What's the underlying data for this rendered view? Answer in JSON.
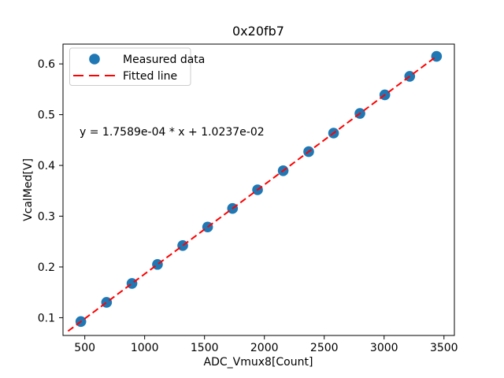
{
  "chart_data": {
    "type": "scatter",
    "title": "0x20fb7",
    "xlabel": "ADC_Vmux8[Count]",
    "ylabel": "VcalMed[V]",
    "annotation": "y = 1.7589e-04 * x + 1.0237e-02",
    "xlim": [
      318,
      3587
    ],
    "ylim": [
      0.065,
      0.639
    ],
    "xticks": [
      500,
      1000,
      1500,
      2000,
      2500,
      3000,
      3500
    ],
    "yticks": [
      0.1,
      0.2,
      0.3,
      0.4,
      0.5,
      0.6
    ],
    "grid": false,
    "legend_position": "upper left",
    "series": [
      {
        "name": "Measured data",
        "type": "scatter",
        "marker": "circle",
        "color": "#1f77b4",
        "x": [
          467,
          682,
          894,
          1107,
          1318,
          1526,
          1734,
          1943,
          2157,
          2370,
          2578,
          2798,
          3006,
          3214,
          3438
        ],
        "y": [
          0.0924,
          0.1302,
          0.1675,
          0.205,
          0.2421,
          0.2787,
          0.3152,
          0.352,
          0.3896,
          0.4271,
          0.4637,
          0.5024,
          0.539,
          0.5755,
          0.6149
        ]
      },
      {
        "name": "Fitted line",
        "type": "line",
        "style": "dashed",
        "color": "#ff0000",
        "fit_slope": 0.00017589,
        "fit_intercept": 0.010237,
        "x_start": 360,
        "x_end": 3438
      }
    ]
  }
}
